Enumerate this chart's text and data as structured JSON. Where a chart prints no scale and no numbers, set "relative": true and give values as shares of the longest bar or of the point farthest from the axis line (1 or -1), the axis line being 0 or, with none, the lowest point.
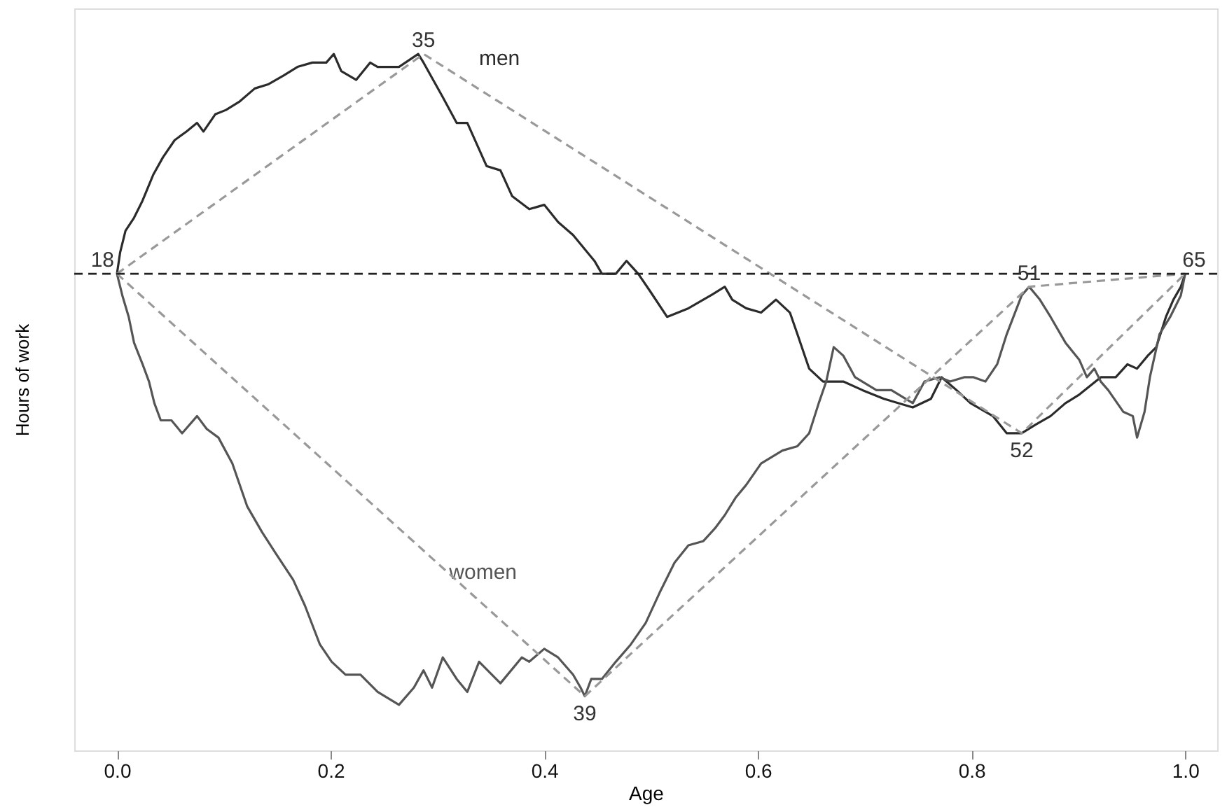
{
  "chart_data": {
    "type": "line",
    "relative": true,
    "xlabel": "Age",
    "ylabel": "Hours of work",
    "xlim": [
      -0.04,
      1.03
    ],
    "xticks": [
      {
        "value": 0,
        "label": "0.0"
      },
      0.2,
      0.4,
      0.6,
      0.8,
      {
        "value": 1,
        "label": "1.0"
      }
    ],
    "grid": false,
    "marker": "none",
    "ref_lines": [
      {
        "axis": "y",
        "value": 0,
        "color": "#222222",
        "line_style": "dashed"
      }
    ],
    "annotations": [
      {
        "text": "18",
        "x": 0,
        "y": 0
      },
      {
        "text": "35",
        "x": 0.287,
        "y": 0.51
      },
      {
        "text": "52",
        "x": 0.847,
        "y": -0.37
      },
      {
        "text": "65",
        "x": 1,
        "y": 0
      },
      {
        "text": "39",
        "x": 0.438,
        "y": -0.98
      },
      {
        "text": "51",
        "x": 0.854,
        "y": -0.03
      }
    ],
    "series": [
      {
        "name": "men",
        "color": "#2b2b2b",
        "line_style": "solid",
        "x": [
          0,
          0.003,
          0.008,
          0.016,
          0.024,
          0.034,
          0.043,
          0.054,
          0.065,
          0.075,
          0.081,
          0.092,
          0.102,
          0.115,
          0.129,
          0.142,
          0.156,
          0.169,
          0.183,
          0.196,
          0.203,
          0.21,
          0.224,
          0.237,
          0.244,
          0.253,
          0.264,
          0.282,
          0.287,
          0.305,
          0.318,
          0.328,
          0.346,
          0.359,
          0.37,
          0.386,
          0.4,
          0.413,
          0.427,
          0.447,
          0.454,
          0.467,
          0.477,
          0.488,
          0.499,
          0.515,
          0.535,
          0.556,
          0.569,
          0.576,
          0.589,
          0.603,
          0.617,
          0.63,
          0.637,
          0.648,
          0.661,
          0.68,
          0.698,
          0.718,
          0.745,
          0.762,
          0.772,
          0.786,
          0.799,
          0.82,
          0.833,
          0.84,
          0.847,
          0.86,
          0.874,
          0.888,
          0.901,
          0.921,
          0.935,
          0.946,
          0.955,
          0.965,
          0.973,
          0.982,
          0.989,
          0.996,
          1
        ],
        "values": [
          0,
          0.05,
          0.1,
          0.13,
          0.17,
          0.23,
          0.27,
          0.31,
          0.33,
          0.35,
          0.33,
          0.37,
          0.38,
          0.4,
          0.43,
          0.44,
          0.46,
          0.48,
          0.49,
          0.49,
          0.51,
          0.47,
          0.45,
          0.49,
          0.48,
          0.48,
          0.48,
          0.51,
          0.49,
          0.41,
          0.35,
          0.35,
          0.25,
          0.24,
          0.18,
          0.15,
          0.16,
          0.12,
          0.09,
          0.03,
          0,
          0,
          0.03,
          0,
          -0.04,
          -0.1,
          -0.08,
          -0.05,
          -0.03,
          -0.06,
          -0.08,
          -0.09,
          -0.06,
          -0.09,
          -0.14,
          -0.22,
          -0.25,
          -0.25,
          -0.27,
          -0.29,
          -0.31,
          -0.29,
          -0.24,
          -0.27,
          -0.3,
          -0.33,
          -0.37,
          -0.37,
          -0.37,
          -0.35,
          -0.33,
          -0.3,
          -0.28,
          -0.24,
          -0.24,
          -0.21,
          -0.22,
          -0.19,
          -0.17,
          -0.1,
          -0.06,
          -0.03,
          0
        ]
      },
      {
        "name": "women",
        "color": "#555555",
        "line_style": "solid",
        "x": [
          0,
          0.005,
          0.011,
          0.016,
          0.024,
          0.03,
          0.035,
          0.041,
          0.051,
          0.061,
          0.075,
          0.084,
          0.095,
          0.108,
          0.122,
          0.136,
          0.149,
          0.165,
          0.176,
          0.19,
          0.201,
          0.214,
          0.228,
          0.244,
          0.264,
          0.278,
          0.287,
          0.295,
          0.305,
          0.318,
          0.328,
          0.339,
          0.359,
          0.379,
          0.386,
          0.4,
          0.413,
          0.427,
          0.434,
          0.438,
          0.444,
          0.454,
          0.467,
          0.481,
          0.495,
          0.508,
          0.522,
          0.535,
          0.549,
          0.56,
          0.569,
          0.579,
          0.589,
          0.603,
          0.623,
          0.637,
          0.648,
          0.657,
          0.664,
          0.671,
          0.68,
          0.691,
          0.711,
          0.725,
          0.745,
          0.756,
          0.77,
          0.78,
          0.793,
          0.802,
          0.813,
          0.824,
          0.833,
          0.847,
          0.854,
          0.864,
          0.874,
          0.888,
          0.901,
          0.908,
          0.915,
          0.921,
          0.928,
          0.942,
          0.951,
          0.955,
          0.962,
          0.967,
          0.976,
          0.986,
          0.996,
          1
        ],
        "values": [
          0,
          -0.05,
          -0.1,
          -0.16,
          -0.21,
          -0.25,
          -0.3,
          -0.34,
          -0.34,
          -0.37,
          -0.33,
          -0.36,
          -0.38,
          -0.44,
          -0.54,
          -0.6,
          -0.65,
          -0.71,
          -0.77,
          -0.86,
          -0.9,
          -0.93,
          -0.93,
          -0.97,
          -1,
          -0.96,
          -0.92,
          -0.96,
          -0.89,
          -0.94,
          -0.97,
          -0.9,
          -0.95,
          -0.89,
          -0.9,
          -0.87,
          -0.89,
          -0.93,
          -0.96,
          -0.98,
          -0.94,
          -0.94,
          -0.9,
          -0.86,
          -0.81,
          -0.74,
          -0.67,
          -0.63,
          -0.62,
          -0.59,
          -0.56,
          -0.52,
          -0.49,
          -0.44,
          -0.41,
          -0.4,
          -0.37,
          -0.3,
          -0.25,
          -0.17,
          -0.19,
          -0.24,
          -0.27,
          -0.27,
          -0.3,
          -0.25,
          -0.24,
          -0.25,
          -0.24,
          -0.24,
          -0.25,
          -0.21,
          -0.14,
          -0.05,
          -0.03,
          -0.06,
          -0.1,
          -0.16,
          -0.2,
          -0.24,
          -0.22,
          -0.25,
          -0.27,
          -0.32,
          -0.33,
          -0.38,
          -0.32,
          -0.24,
          -0.14,
          -0.1,
          -0.05,
          0
        ]
      },
      {
        "type": "line",
        "color": "#999999",
        "line_style": "dashed",
        "x": [
          0,
          0.287,
          0.847,
          1
        ],
        "values": [
          0,
          0.51,
          -0.37,
          0
        ]
      },
      {
        "type": "line",
        "color": "#999999",
        "line_style": "dashed",
        "x": [
          0,
          0.438,
          0.854,
          1
        ],
        "values": [
          0,
          -0.98,
          -0.03,
          0
        ]
      }
    ]
  }
}
